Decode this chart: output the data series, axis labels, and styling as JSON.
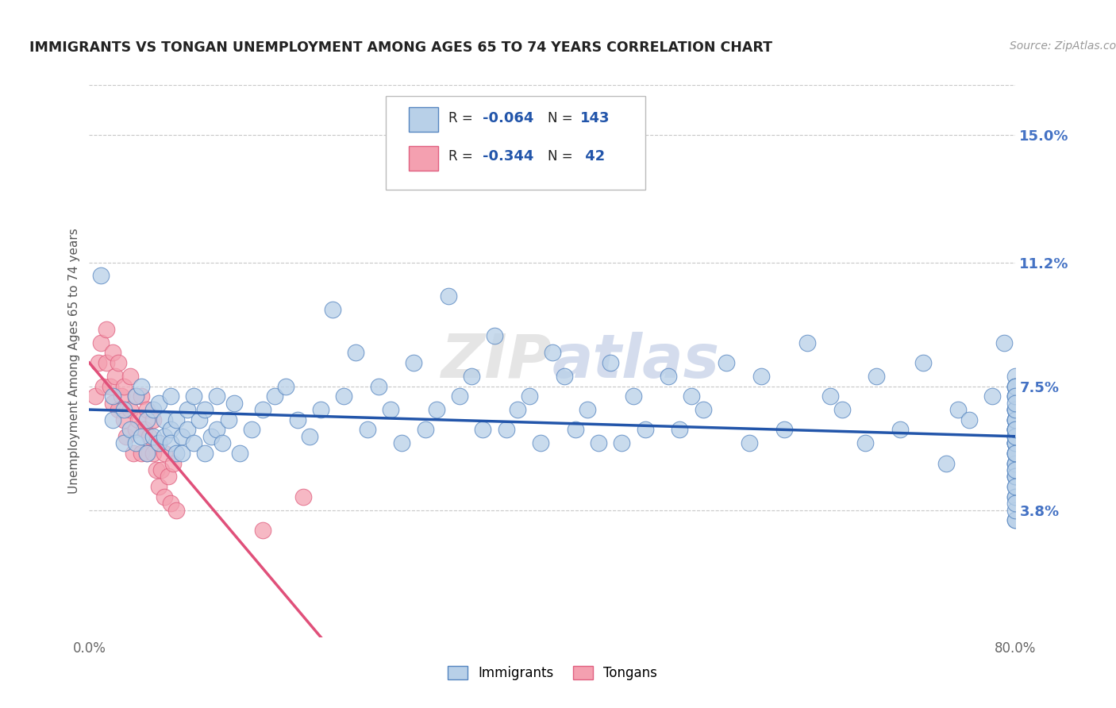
{
  "title": "IMMIGRANTS VS TONGAN UNEMPLOYMENT AMONG AGES 65 TO 74 YEARS CORRELATION CHART",
  "source_text": "Source: ZipAtlas.com",
  "ylabel": "Unemployment Among Ages 65 to 74 years",
  "xlim": [
    0,
    0.8
  ],
  "ylim": [
    0,
    0.165
  ],
  "xtick_positions": [
    0.0,
    0.8
  ],
  "xticklabels": [
    "0.0%",
    "80.0%"
  ],
  "ytick_positions": [
    0.038,
    0.075,
    0.112,
    0.15
  ],
  "ytick_labels": [
    "3.8%",
    "7.5%",
    "11.2%",
    "15.0%"
  ],
  "right_axis_color": "#4472c4",
  "immigrant_color": "#b8d0e8",
  "immigrant_edge_color": "#5585c0",
  "tongan_color": "#f4a0b0",
  "tongan_edge_color": "#e06080",
  "trend_immigrant_color": "#2255aa",
  "trend_tongan_color": "#e0507a",
  "watermark": "ZIPAtlas",
  "grid_color": "#c8c8c8",
  "background_color": "#ffffff",
  "immigrants_x": [
    0.01,
    0.02,
    0.02,
    0.03,
    0.03,
    0.035,
    0.04,
    0.04,
    0.045,
    0.045,
    0.05,
    0.05,
    0.055,
    0.055,
    0.06,
    0.06,
    0.065,
    0.065,
    0.07,
    0.07,
    0.07,
    0.075,
    0.075,
    0.08,
    0.08,
    0.085,
    0.085,
    0.09,
    0.09,
    0.095,
    0.1,
    0.1,
    0.105,
    0.11,
    0.11,
    0.115,
    0.12,
    0.125,
    0.13,
    0.14,
    0.15,
    0.16,
    0.17,
    0.18,
    0.19,
    0.2,
    0.21,
    0.22,
    0.23,
    0.24,
    0.25,
    0.26,
    0.27,
    0.28,
    0.29,
    0.3,
    0.31,
    0.32,
    0.33,
    0.34,
    0.35,
    0.36,
    0.37,
    0.38,
    0.39,
    0.4,
    0.41,
    0.42,
    0.43,
    0.44,
    0.45,
    0.46,
    0.47,
    0.48,
    0.5,
    0.51,
    0.52,
    0.53,
    0.55,
    0.57,
    0.58,
    0.6,
    0.62,
    0.64,
    0.65,
    0.67,
    0.68,
    0.7,
    0.72,
    0.74,
    0.75,
    0.76,
    0.78,
    0.79,
    0.8,
    0.8,
    0.8,
    0.8,
    0.8,
    0.8,
    0.8,
    0.8,
    0.8,
    0.8,
    0.8,
    0.8,
    0.8,
    0.8,
    0.8,
    0.8,
    0.8,
    0.8,
    0.8,
    0.8,
    0.8,
    0.8,
    0.8,
    0.8,
    0.8,
    0.8,
    0.8,
    0.8,
    0.8,
    0.8,
    0.8,
    0.8,
    0.8,
    0.8,
    0.8,
    0.8,
    0.8,
    0.8,
    0.8,
    0.8,
    0.8,
    0.8,
    0.8,
    0.8,
    0.8,
    0.8,
    0.8,
    0.8,
    0.8
  ],
  "immigrants_y": [
    0.108,
    0.072,
    0.065,
    0.068,
    0.058,
    0.062,
    0.072,
    0.058,
    0.06,
    0.075,
    0.065,
    0.055,
    0.068,
    0.06,
    0.07,
    0.058,
    0.065,
    0.06,
    0.062,
    0.058,
    0.072,
    0.055,
    0.065,
    0.06,
    0.055,
    0.062,
    0.068,
    0.058,
    0.072,
    0.065,
    0.068,
    0.055,
    0.06,
    0.062,
    0.072,
    0.058,
    0.065,
    0.07,
    0.055,
    0.062,
    0.068,
    0.072,
    0.075,
    0.065,
    0.06,
    0.068,
    0.098,
    0.072,
    0.085,
    0.062,
    0.075,
    0.068,
    0.058,
    0.082,
    0.062,
    0.068,
    0.102,
    0.072,
    0.078,
    0.062,
    0.09,
    0.062,
    0.068,
    0.072,
    0.058,
    0.085,
    0.078,
    0.062,
    0.068,
    0.058,
    0.082,
    0.058,
    0.072,
    0.062,
    0.078,
    0.062,
    0.072,
    0.068,
    0.082,
    0.058,
    0.078,
    0.062,
    0.088,
    0.072,
    0.068,
    0.058,
    0.078,
    0.062,
    0.082,
    0.052,
    0.068,
    0.065,
    0.072,
    0.088,
    0.072,
    0.078,
    0.068,
    0.062,
    0.075,
    0.058,
    0.052,
    0.065,
    0.058,
    0.05,
    0.062,
    0.035,
    0.068,
    0.06,
    0.055,
    0.042,
    0.075,
    0.068,
    0.058,
    0.052,
    0.045,
    0.035,
    0.048,
    0.055,
    0.062,
    0.038,
    0.065,
    0.058,
    0.048,
    0.042,
    0.04,
    0.052,
    0.065,
    0.072,
    0.06,
    0.048,
    0.062,
    0.055,
    0.045,
    0.065,
    0.058,
    0.075,
    0.068,
    0.055,
    0.06,
    0.05,
    0.072,
    0.062,
    0.07
  ],
  "tongans_x": [
    0.005,
    0.008,
    0.01,
    0.012,
    0.015,
    0.015,
    0.018,
    0.02,
    0.02,
    0.022,
    0.025,
    0.025,
    0.028,
    0.03,
    0.03,
    0.032,
    0.035,
    0.035,
    0.038,
    0.04,
    0.04,
    0.042,
    0.045,
    0.045,
    0.048,
    0.05,
    0.05,
    0.052,
    0.055,
    0.055,
    0.058,
    0.06,
    0.06,
    0.062,
    0.065,
    0.065,
    0.068,
    0.07,
    0.072,
    0.075,
    0.15,
    0.185
  ],
  "tongans_y": [
    0.072,
    0.082,
    0.088,
    0.075,
    0.092,
    0.082,
    0.075,
    0.085,
    0.07,
    0.078,
    0.082,
    0.068,
    0.072,
    0.065,
    0.075,
    0.06,
    0.068,
    0.078,
    0.055,
    0.072,
    0.062,
    0.065,
    0.072,
    0.055,
    0.062,
    0.068,
    0.055,
    0.06,
    0.055,
    0.065,
    0.05,
    0.058,
    0.045,
    0.05,
    0.055,
    0.042,
    0.048,
    0.04,
    0.052,
    0.038,
    0.032,
    0.042
  ],
  "imm_trend_x": [
    0.0,
    0.8
  ],
  "imm_trend_y": [
    0.068,
    0.06
  ],
  "ton_trend_x": [
    0.0,
    0.2
  ],
  "ton_trend_y": [
    0.082,
    0.0
  ]
}
